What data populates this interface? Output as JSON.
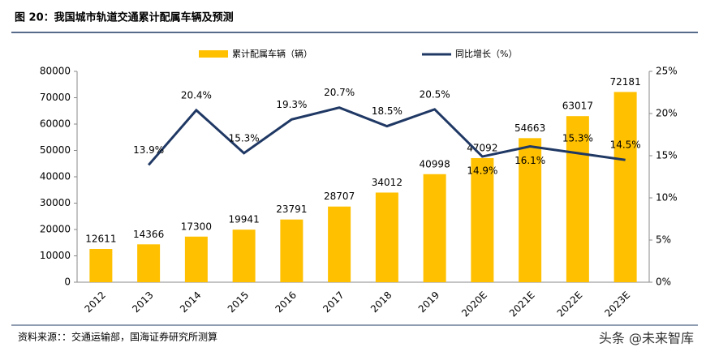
{
  "title": "图 20：我国城市轨道交通累计配属车辆及预测",
  "chart_data": {
    "type": "bar-line",
    "categories": [
      "2012",
      "2013",
      "2014",
      "2015",
      "2016",
      "2017",
      "2018",
      "2019",
      "2020E",
      "2021E",
      "2022E",
      "2023E"
    ],
    "series": [
      {
        "name": "累计配属车辆（辆）",
        "type": "bar",
        "color": "#FFC000",
        "values": [
          12611,
          14366,
          17300,
          19941,
          23791,
          28707,
          34012,
          40998,
          47092,
          54663,
          63017,
          72181
        ]
      },
      {
        "name": "同比增长（%）",
        "type": "line",
        "axis": "y2",
        "color": "#1F3864",
        "values": [
          null,
          13.9,
          20.4,
          15.3,
          19.3,
          20.7,
          18.5,
          20.5,
          14.9,
          16.1,
          15.3,
          14.5
        ],
        "value_labels": [
          null,
          "13.9%",
          "20.4%",
          "15.3%",
          "19.3%",
          "20.7%",
          "18.5%",
          "20.5%",
          "14.9%",
          "16.1%",
          "15.3%",
          "14.5%"
        ]
      }
    ],
    "ylim": [
      0,
      80000
    ],
    "yticks": [
      0,
      10000,
      20000,
      30000,
      40000,
      50000,
      60000,
      70000,
      80000
    ],
    "y2lim": [
      0,
      25
    ],
    "y2ticks": [
      {
        "value": 0,
        "label": "0%"
      },
      {
        "value": 5,
        "label": "5%"
      },
      {
        "value": 10,
        "label": "10%"
      },
      {
        "value": 15,
        "label": "15%"
      },
      {
        "value": 20,
        "label": "20%"
      },
      {
        "value": 25,
        "label": "25%"
      }
    ]
  },
  "source": "资料来源：：交通运输部，国海证券研究所测算",
  "watermark": "头条 @未来智库"
}
